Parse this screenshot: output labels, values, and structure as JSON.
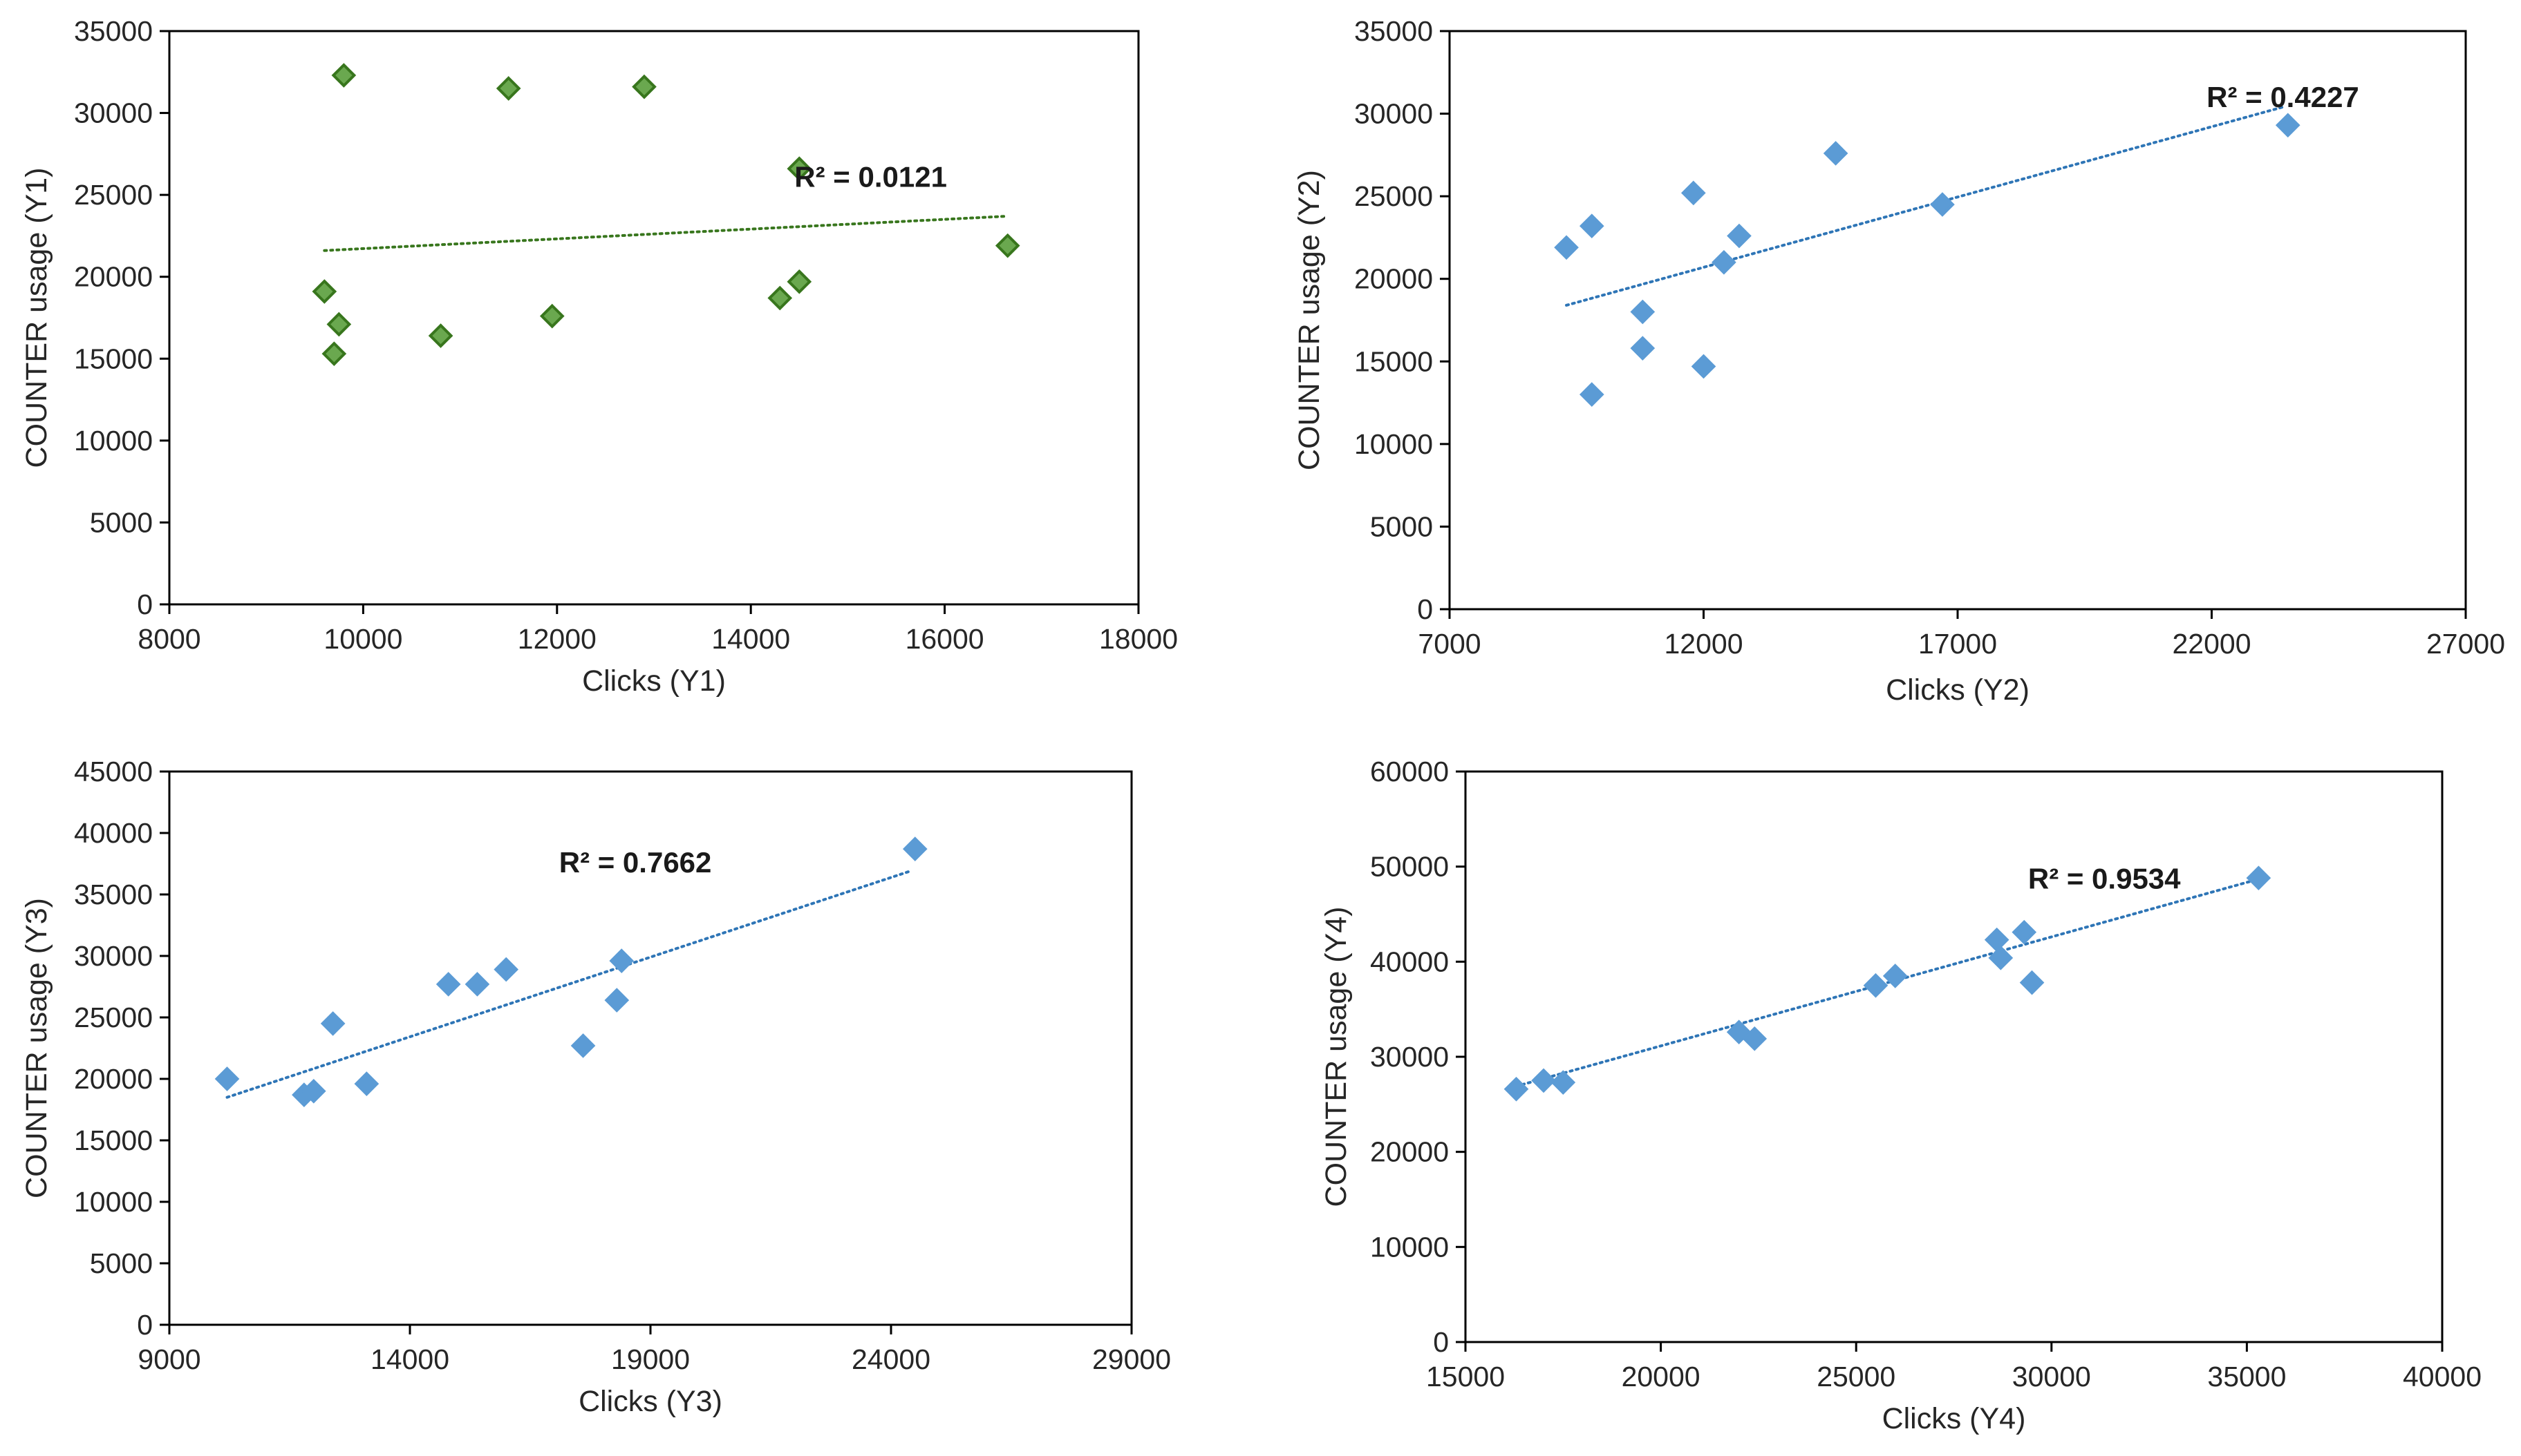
{
  "chart_data": [
    {
      "type": "scatter",
      "xlabel": "Clicks (Y1)",
      "ylabel": "COUNTER usage (Y1)",
      "xlim": [
        8000,
        18000
      ],
      "ylim": [
        0,
        35000
      ],
      "xticks": [
        "8000",
        "10000",
        "12000",
        "14000",
        "16000",
        "18000"
      ],
      "yticks": [
        "0",
        "5000",
        "10000",
        "15000",
        "20000",
        "25000",
        "30000",
        "35000"
      ],
      "marker_color": "#6aa84f",
      "marker_edge": "#38761d",
      "trend_color": "#38761d",
      "r2_label": "R² = 0.0121",
      "trendline": [
        [
          9600,
          21600
        ],
        [
          16650,
          23700
        ]
      ],
      "points": [
        [
          9600,
          19100
        ],
        [
          9700,
          15300
        ],
        [
          9750,
          17100
        ],
        [
          9800,
          32300
        ],
        [
          10800,
          16400
        ],
        [
          11500,
          31500
        ],
        [
          11950,
          17600
        ],
        [
          12900,
          31600
        ],
        [
          14300,
          18700
        ],
        [
          14500,
          19700
        ],
        [
          14500,
          26600
        ],
        [
          16650,
          21900
        ]
      ]
    },
    {
      "type": "scatter",
      "xlabel": "Clicks (Y2)",
      "ylabel": "COUNTER usage (Y2)",
      "xlim": [
        7000,
        27000
      ],
      "ylim": [
        0,
        35000
      ],
      "xticks": [
        "7000",
        "12000",
        "17000",
        "22000",
        "27000"
      ],
      "yticks": [
        "0",
        "5000",
        "10000",
        "15000",
        "20000",
        "25000",
        "30000",
        "35000"
      ],
      "marker_color": "#5b9bd5",
      "marker_edge": "#5b9bd5",
      "trend_color": "#2e75b6",
      "r2_label": "R² = 0.4227",
      "trendline": [
        [
          9300,
          18400
        ],
        [
          23400,
          30400
        ]
      ],
      "points": [
        [
          9300,
          21900
        ],
        [
          9800,
          13000
        ],
        [
          9800,
          23200
        ],
        [
          10800,
          18000
        ],
        [
          10800,
          15800
        ],
        [
          11800,
          25200
        ],
        [
          12000,
          14700
        ],
        [
          12400,
          21000
        ],
        [
          12700,
          22600
        ],
        [
          14600,
          27600
        ],
        [
          16700,
          24500
        ],
        [
          23500,
          29300
        ]
      ]
    },
    {
      "type": "scatter",
      "xlabel": "Clicks (Y3)",
      "ylabel": "COUNTER usage (Y3)",
      "xlim": [
        9000,
        29000
      ],
      "ylim": [
        0,
        45000
      ],
      "xticks": [
        "9000",
        "14000",
        "19000",
        "24000",
        "29000"
      ],
      "yticks": [
        "0",
        "5000",
        "10000",
        "15000",
        "20000",
        "25000",
        "30000",
        "35000",
        "40000",
        "45000"
      ],
      "marker_color": "#5b9bd5",
      "marker_edge": "#5b9bd5",
      "trend_color": "#2e75b6",
      "r2_label": "R² = 0.7662",
      "trendline": [
        [
          10200,
          18500
        ],
        [
          24400,
          36900
        ]
      ],
      "points": [
        [
          10200,
          20000
        ],
        [
          11800,
          18700
        ],
        [
          12000,
          19000
        ],
        [
          12400,
          24500
        ],
        [
          13100,
          19600
        ],
        [
          14800,
          27700
        ],
        [
          15400,
          27700
        ],
        [
          16000,
          28900
        ],
        [
          17600,
          22700
        ],
        [
          18300,
          26400
        ],
        [
          18400,
          29600
        ],
        [
          24500,
          38700
        ]
      ]
    },
    {
      "type": "scatter",
      "xlabel": "Clicks (Y4)",
      "ylabel": "COUNTER usage (Y4)",
      "xlim": [
        15000,
        40000
      ],
      "ylim": [
        0,
        60000
      ],
      "xticks": [
        "15000",
        "20000",
        "25000",
        "30000",
        "35000",
        "40000"
      ],
      "yticks": [
        "0",
        "10000",
        "20000",
        "30000",
        "40000",
        "50000",
        "60000"
      ],
      "marker_color": "#5b9bd5",
      "marker_edge": "#5b9bd5",
      "trend_color": "#2e75b6",
      "r2_label": "R² = 0.9534",
      "trendline": [
        [
          16300,
          26900
        ],
        [
          35400,
          48800
        ]
      ],
      "points": [
        [
          16300,
          26600
        ],
        [
          17000,
          27500
        ],
        [
          17500,
          27300
        ],
        [
          22000,
          32600
        ],
        [
          22400,
          31900
        ],
        [
          25500,
          37500
        ],
        [
          26000,
          38500
        ],
        [
          28600,
          42300
        ],
        [
          28700,
          40400
        ],
        [
          29300,
          43100
        ],
        [
          29500,
          37800
        ],
        [
          35300,
          48800
        ]
      ]
    }
  ]
}
